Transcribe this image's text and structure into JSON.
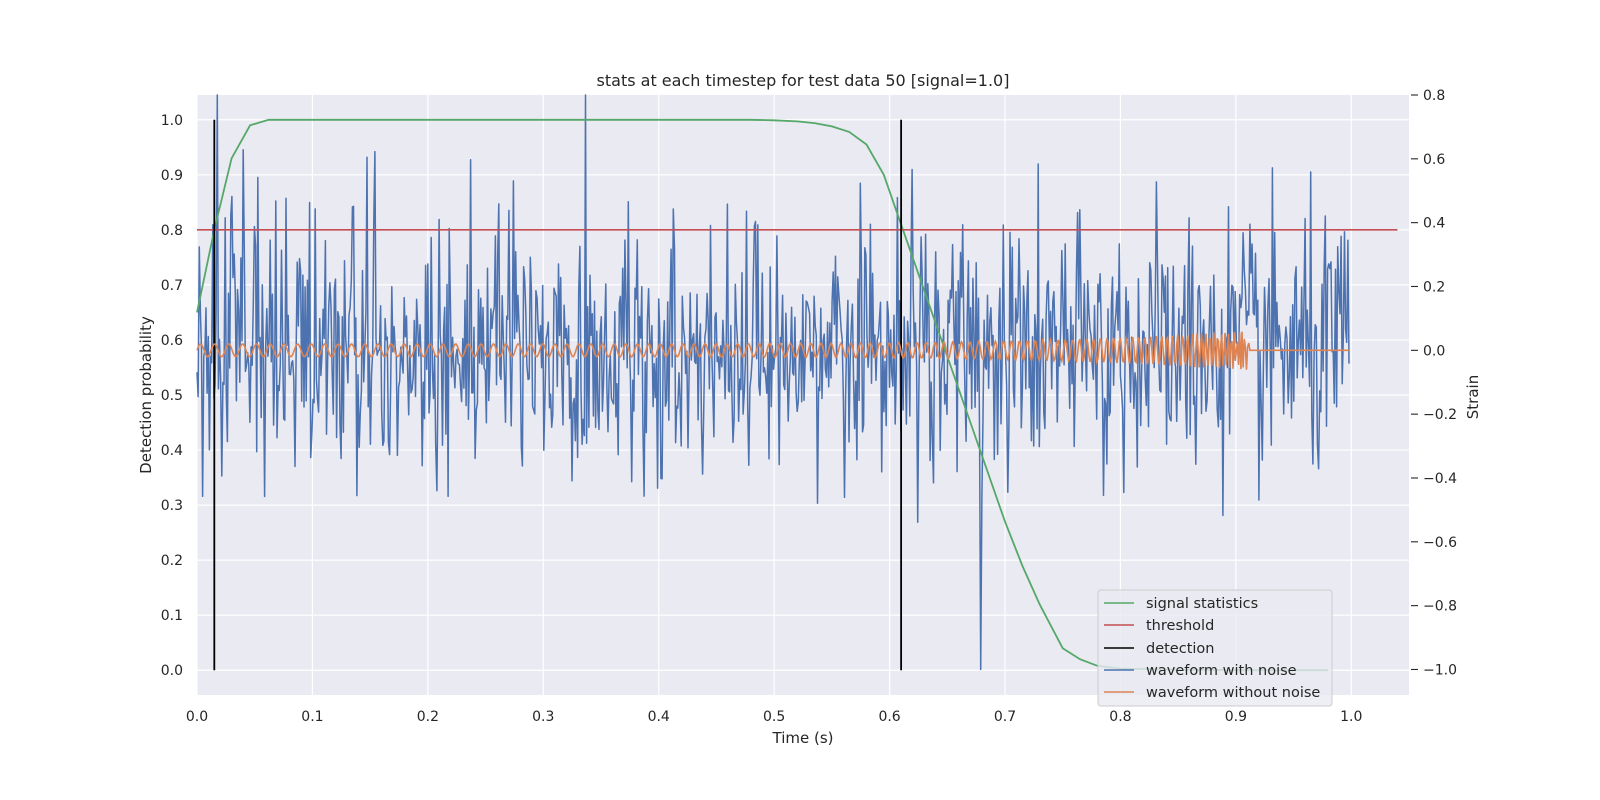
{
  "chart_data": {
    "type": "line",
    "title": "stats at each timestep for test data 50 [signal=1.0]",
    "xlabel": "Time (s)",
    "ylabel": "Detection probability",
    "y2label": "Strain",
    "xlim": [
      0.0,
      1.05
    ],
    "ylim": [
      -0.045,
      1.045
    ],
    "y2lim": [
      -1.08,
      0.8
    ],
    "xticks": [
      "0.0",
      "0.1",
      "0.2",
      "0.3",
      "0.4",
      "0.5",
      "0.6",
      "0.7",
      "0.8",
      "0.9",
      "1.0"
    ],
    "yticks": [
      "0.0",
      "0.1",
      "0.2",
      "0.3",
      "0.4",
      "0.5",
      "0.6",
      "0.7",
      "0.8",
      "0.9",
      "1.0"
    ],
    "y2ticks": [
      "−1.0",
      "−0.8",
      "−0.6",
      "−0.4",
      "−0.2",
      "0.0",
      "0.2",
      "0.4",
      "0.6",
      "0.8"
    ],
    "grid": true,
    "legend_position": "lower-right",
    "colors": {
      "signal_statistics": "#55a868",
      "threshold": "#c44e52",
      "detection": "#000000",
      "waveform_with_noise": "#4c72b0",
      "waveform_without_noise": "#dd8452",
      "background": "#eaeaf2"
    },
    "legend": [
      "signal statistics",
      "threshold",
      "detection",
      "waveform with noise",
      "waveform without noise"
    ],
    "signal_statistics": {
      "x": [
        0.0,
        0.015,
        0.03,
        0.046,
        0.062,
        0.078,
        0.1,
        0.2,
        0.3,
        0.4,
        0.48,
        0.5,
        0.52,
        0.535,
        0.55,
        0.565,
        0.58,
        0.595,
        0.61,
        0.625,
        0.64,
        0.655,
        0.67,
        0.685,
        0.7,
        0.715,
        0.73,
        0.75,
        0.765,
        0.78,
        0.8,
        0.85,
        0.9,
        0.95,
        0.98
      ],
      "y": [
        0.65,
        0.8,
        0.93,
        0.99,
        1.0,
        1.0,
        1.0,
        1.0,
        1.0,
        1.0,
        1.0,
        0.999,
        0.997,
        0.994,
        0.988,
        0.978,
        0.955,
        0.9,
        0.81,
        0.72,
        0.63,
        0.54,
        0.45,
        0.36,
        0.27,
        0.19,
        0.12,
        0.04,
        0.02,
        0.008,
        0.003,
        0.001,
        0.0,
        0.0,
        0.0
      ]
    },
    "threshold": {
      "y": 0.8,
      "x": [
        0.0,
        1.04
      ]
    },
    "detections": [
      {
        "x": 0.015,
        "y": [
          0.0,
          1.0
        ]
      },
      {
        "x": 0.61,
        "y": [
          0.0,
          1.0
        ]
      }
    ],
    "waveform_with_noise": {
      "t_start": 0.0,
      "t_end": 0.998,
      "n_points": 1024,
      "amplitude_std": 0.2,
      "peak_max": 0.8,
      "peak_min": -1.0
    },
    "waveform_without_noise": {
      "t_start": 0.0,
      "t_end": 0.998,
      "merger_time": 0.912,
      "amplitude_start": 0.02,
      "amplitude_peak": 0.065,
      "cycles": 120
    }
  }
}
